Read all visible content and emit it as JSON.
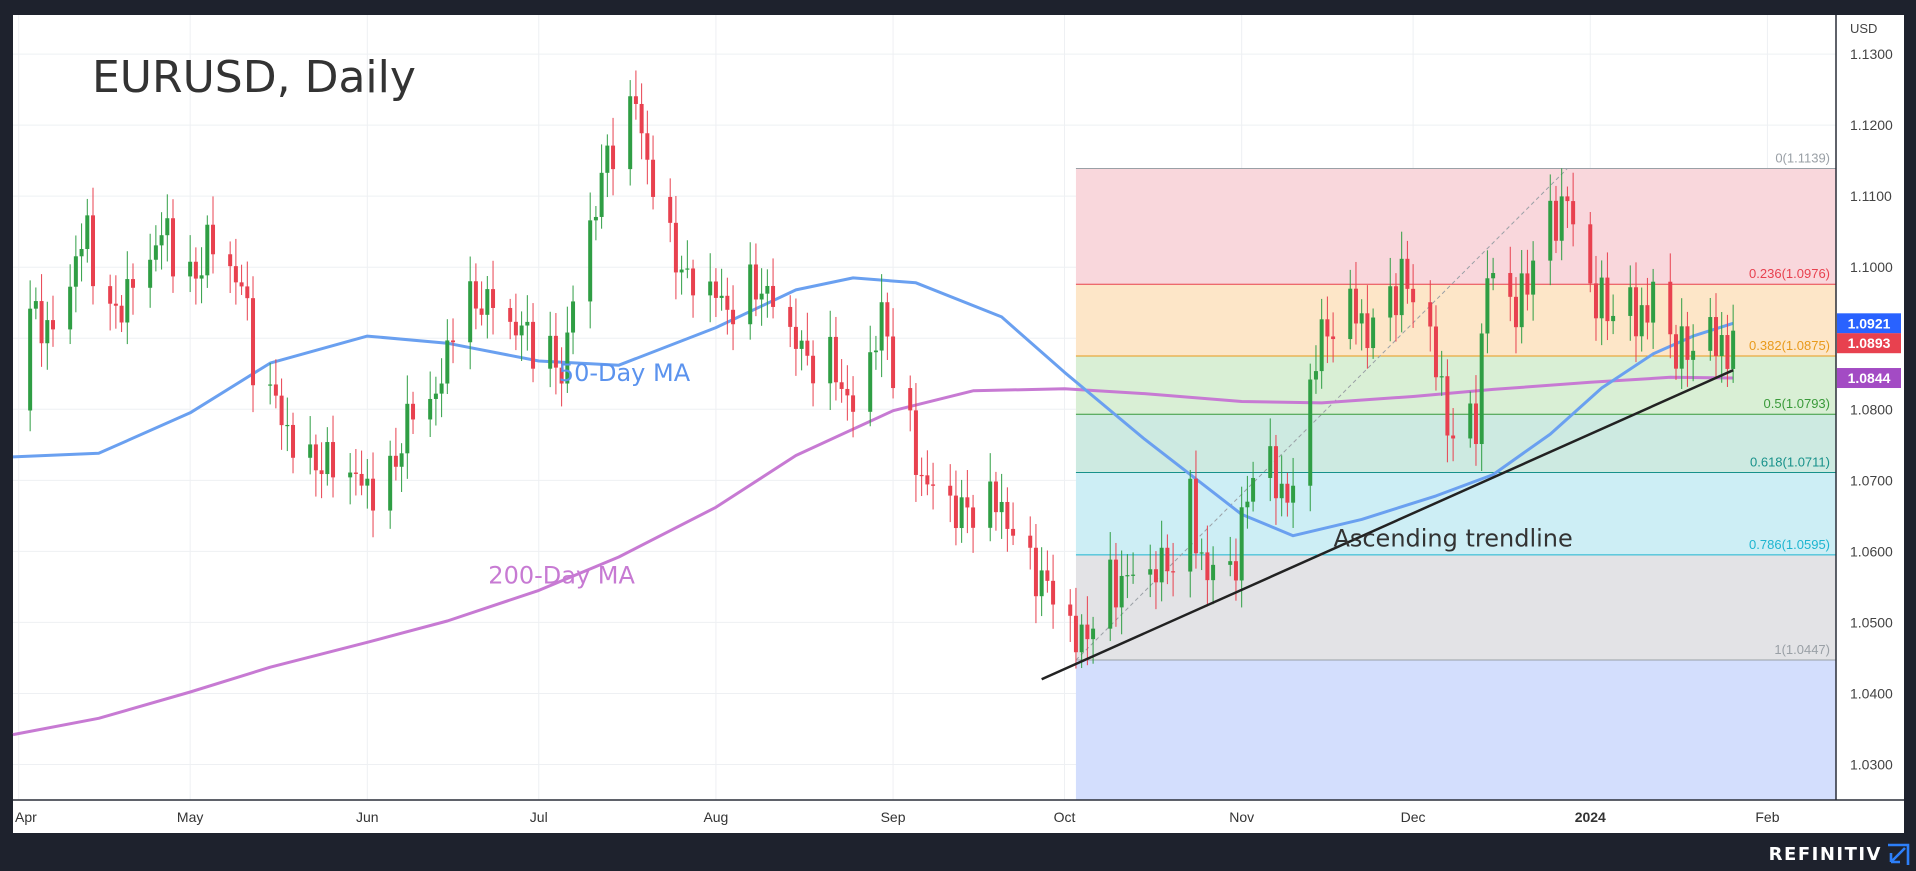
{
  "brand": "REFINITIV",
  "chart_data": {
    "type": "candlestick",
    "title": "EURUSD, Daily",
    "currency_label": "USD",
    "ylim": [
      1.025,
      1.1355
    ],
    "y_ticks": [
      1.03,
      1.04,
      1.05,
      1.06,
      1.07,
      1.08,
      1.09,
      1.1,
      1.11,
      1.12,
      1.13
    ],
    "x_labels": [
      {
        "label": "Apr",
        "date": "2023-04-01",
        "bold": false
      },
      {
        "label": "May",
        "date": "2023-05-01",
        "bold": false
      },
      {
        "label": "Jun",
        "date": "2023-06-01",
        "bold": false
      },
      {
        "label": "Jul",
        "date": "2023-07-01",
        "bold": false
      },
      {
        "label": "Aug",
        "date": "2023-08-01",
        "bold": false
      },
      {
        "label": "Sep",
        "date": "2023-09-01",
        "bold": false
      },
      {
        "label": "Oct",
        "date": "2023-10-01",
        "bold": false
      },
      {
        "label": "Nov",
        "date": "2023-11-01",
        "bold": false
      },
      {
        "label": "Dec",
        "date": "2023-12-01",
        "bold": false
      },
      {
        "label": "2024",
        "date": "2024-01-01",
        "bold": true
      },
      {
        "label": "Feb",
        "date": "2024-02-01",
        "bold": false
      }
    ],
    "xlim": [
      "2023-03-31",
      "2024-02-13"
    ],
    "colors": {
      "up": "#2f9e44",
      "down": "#e8414f",
      "ma50": "#6aa0f0",
      "ma200": "#c77ad3",
      "trendline": "#222222",
      "background": "#ffffff",
      "grid": "#eef0f3"
    },
    "price_badges": [
      {
        "label": "1.0921",
        "value": 1.0921,
        "color": "#2962ff"
      },
      {
        "label": "1.0893",
        "value": 1.0893,
        "color": "#e8414f"
      },
      {
        "label": "1.0844",
        "value": 1.0844,
        "color": "#a34bc4"
      }
    ],
    "annotations": [
      {
        "text": "50-Day MA",
        "date": "2023-07-16",
        "value": 1.084,
        "color": "#5b93ee"
      },
      {
        "text": "200-Day MA",
        "date": "2023-07-05",
        "value": 1.0555,
        "color": "#c77ad3"
      },
      {
        "text": "Ascending trendline",
        "date": "2023-12-08",
        "value": 1.0607,
        "color": "#333333"
      }
    ],
    "fibonacci": {
      "start_date": "2023-10-03",
      "end_date": "2024-02-13",
      "levels": [
        {
          "label": "0(1.1139)",
          "ratio": 0,
          "value": 1.1139,
          "color": "#9aa0a6",
          "fill": "#f9d7dc"
        },
        {
          "label": "0.236(1.0976)",
          "ratio": 0.236,
          "value": 1.0976,
          "color": "#e8414f",
          "fill": "#fde6c8"
        },
        {
          "label": "0.382(1.0875)",
          "ratio": 0.382,
          "value": 1.0875,
          "color": "#e89a1c",
          "fill": "#d9efd5"
        },
        {
          "label": "0.5(1.0793)",
          "ratio": 0.5,
          "value": 1.0793,
          "color": "#3a9a3a",
          "fill": "#cdeae1"
        },
        {
          "label": "0.618(1.0711)",
          "ratio": 0.618,
          "value": 1.0711,
          "color": "#17918a",
          "fill": "#cdeef5"
        },
        {
          "label": "0.786(1.0595)",
          "ratio": 0.786,
          "value": 1.0595,
          "color": "#1eb5d0",
          "fill": "#e3e3e6"
        },
        {
          "label": "1(1.0447)",
          "ratio": 1,
          "value": 1.0447,
          "color": "#9aa0a6",
          "fill": "#d3defd"
        }
      ]
    },
    "trendline": {
      "start": {
        "date": "2023-09-27",
        "value": 1.042
      },
      "end": {
        "date": "2024-01-26",
        "value": 1.0855
      }
    },
    "swing_line": {
      "start": {
        "date": "2023-10-03",
        "value": 1.0447
      },
      "end": {
        "date": "2023-12-28",
        "value": 1.1139
      }
    },
    "series": [
      {
        "name": "50-Day MA",
        "type": "line",
        "points": [
          {
            "date": "2023-03-31",
            "value": 1.0733
          },
          {
            "date": "2023-04-15",
            "value": 1.0738
          },
          {
            "date": "2023-05-01",
            "value": 1.0795
          },
          {
            "date": "2023-05-15",
            "value": 1.0865
          },
          {
            "date": "2023-06-01",
            "value": 1.0903
          },
          {
            "date": "2023-06-15",
            "value": 1.0893
          },
          {
            "date": "2023-07-01",
            "value": 1.0868
          },
          {
            "date": "2023-07-15",
            "value": 1.0862
          },
          {
            "date": "2023-08-01",
            "value": 1.0915
          },
          {
            "date": "2023-08-15",
            "value": 1.0968
          },
          {
            "date": "2023-08-25",
            "value": 1.0985
          },
          {
            "date": "2023-09-05",
            "value": 1.0978
          },
          {
            "date": "2023-09-20",
            "value": 1.093
          },
          {
            "date": "2023-10-01",
            "value": 1.0852
          },
          {
            "date": "2023-10-15",
            "value": 1.0758
          },
          {
            "date": "2023-11-01",
            "value": 1.0652
          },
          {
            "date": "2023-11-10",
            "value": 1.0622
          },
          {
            "date": "2023-11-22",
            "value": 1.0645
          },
          {
            "date": "2023-12-05",
            "value": 1.0678
          },
          {
            "date": "2023-12-15",
            "value": 1.0708
          },
          {
            "date": "2023-12-25",
            "value": 1.0765
          },
          {
            "date": "2024-01-03",
            "value": 1.083
          },
          {
            "date": "2024-01-12",
            "value": 1.0878
          },
          {
            "date": "2024-01-19",
            "value": 1.0903
          },
          {
            "date": "2024-01-26",
            "value": 1.0921
          }
        ]
      },
      {
        "name": "200-Day MA",
        "type": "line",
        "points": [
          {
            "date": "2023-03-31",
            "value": 1.0342
          },
          {
            "date": "2023-04-15",
            "value": 1.0365
          },
          {
            "date": "2023-05-01",
            "value": 1.0402
          },
          {
            "date": "2023-05-15",
            "value": 1.0437
          },
          {
            "date": "2023-06-01",
            "value": 1.0472
          },
          {
            "date": "2023-06-15",
            "value": 1.0502
          },
          {
            "date": "2023-07-01",
            "value": 1.0545
          },
          {
            "date": "2023-07-15",
            "value": 1.0592
          },
          {
            "date": "2023-08-01",
            "value": 1.0662
          },
          {
            "date": "2023-08-15",
            "value": 1.0735
          },
          {
            "date": "2023-09-01",
            "value": 1.0798
          },
          {
            "date": "2023-09-15",
            "value": 1.0826
          },
          {
            "date": "2023-10-01",
            "value": 1.0829
          },
          {
            "date": "2023-10-15",
            "value": 1.0822
          },
          {
            "date": "2023-11-01",
            "value": 1.0811
          },
          {
            "date": "2023-11-15",
            "value": 1.0809
          },
          {
            "date": "2023-12-01",
            "value": 1.0818
          },
          {
            "date": "2023-12-15",
            "value": 1.0828
          },
          {
            "date": "2024-01-01",
            "value": 1.0838
          },
          {
            "date": "2024-01-15",
            "value": 1.0845
          },
          {
            "date": "2024-01-26",
            "value": 1.0844
          }
        ]
      },
      {
        "name": "EURUSD",
        "type": "candlestick",
        "anchors": [
          [
            "2023-03-31",
            1.0842
          ],
          [
            "2023-04-04",
            1.0955
          ],
          [
            "2023-04-06",
            1.09
          ],
          [
            "2023-04-13",
            1.1045
          ],
          [
            "2023-04-17",
            1.0925
          ],
          [
            "2023-04-21",
            1.0985
          ],
          [
            "2023-04-26",
            1.1045
          ],
          [
            "2023-05-02",
            1.097
          ],
          [
            "2023-05-04",
            1.1055
          ],
          [
            "2023-05-10",
            1.098
          ],
          [
            "2023-05-12",
            1.0855
          ],
          [
            "2023-05-18",
            1.0775
          ],
          [
            "2023-05-24",
            1.0725
          ],
          [
            "2023-05-31",
            1.069
          ],
          [
            "2023-06-05",
            1.0712
          ],
          [
            "2023-06-08",
            1.0785
          ],
          [
            "2023-06-14",
            1.0825
          ],
          [
            "2023-06-16",
            1.0935
          ],
          [
            "2023-06-22",
            1.096
          ],
          [
            "2023-06-28",
            1.0905
          ],
          [
            "2023-07-05",
            1.0852
          ],
          [
            "2023-07-07",
            1.0968
          ],
          [
            "2023-07-12",
            1.1125
          ],
          [
            "2023-07-18",
            1.1225
          ],
          [
            "2023-07-21",
            1.1125
          ],
          [
            "2023-07-27",
            1.0972
          ],
          [
            "2023-08-03",
            1.0945
          ],
          [
            "2023-08-08",
            1.0985
          ],
          [
            "2023-08-16",
            1.0875
          ],
          [
            "2023-08-22",
            1.0862
          ],
          [
            "2023-08-25",
            1.0795
          ],
          [
            "2023-08-30",
            1.0925
          ],
          [
            "2023-09-05",
            1.0722
          ],
          [
            "2023-09-14",
            1.0645
          ],
          [
            "2023-09-20",
            1.0665
          ],
          [
            "2023-09-26",
            1.0575
          ],
          [
            "2023-10-03",
            1.0462
          ],
          [
            "2023-10-09",
            1.0562
          ],
          [
            "2023-10-16",
            1.0555
          ],
          [
            "2023-10-20",
            1.0595
          ],
          [
            "2023-10-23",
            1.0665
          ],
          [
            "2023-10-26",
            1.0565
          ],
          [
            "2023-10-31",
            1.0578
          ],
          [
            "2023-11-03",
            1.0722
          ],
          [
            "2023-11-10",
            1.0682
          ],
          [
            "2023-11-14",
            1.0885
          ],
          [
            "2023-11-21",
            1.0935
          ],
          [
            "2023-11-23",
            1.0915
          ],
          [
            "2023-11-29",
            1.0985
          ],
          [
            "2023-12-04",
            1.0883
          ],
          [
            "2023-12-08",
            1.0765
          ],
          [
            "2023-12-12",
            1.0795
          ],
          [
            "2023-12-14",
            1.0985
          ],
          [
            "2023-12-19",
            1.0925
          ],
          [
            "2023-12-22",
            1.102
          ],
          [
            "2023-12-28",
            1.1105
          ],
          [
            "2023-12-29",
            1.1035
          ],
          [
            "2024-01-02",
            1.0945
          ],
          [
            "2024-01-04",
            1.0942
          ],
          [
            "2024-01-09",
            1.0932
          ],
          [
            "2024-01-12",
            1.0955
          ],
          [
            "2024-01-16",
            1.0885
          ],
          [
            "2024-01-17",
            1.0875
          ],
          [
            "2024-01-22",
            1.0892
          ],
          [
            "2024-01-26",
            1.0893
          ]
        ]
      }
    ]
  }
}
